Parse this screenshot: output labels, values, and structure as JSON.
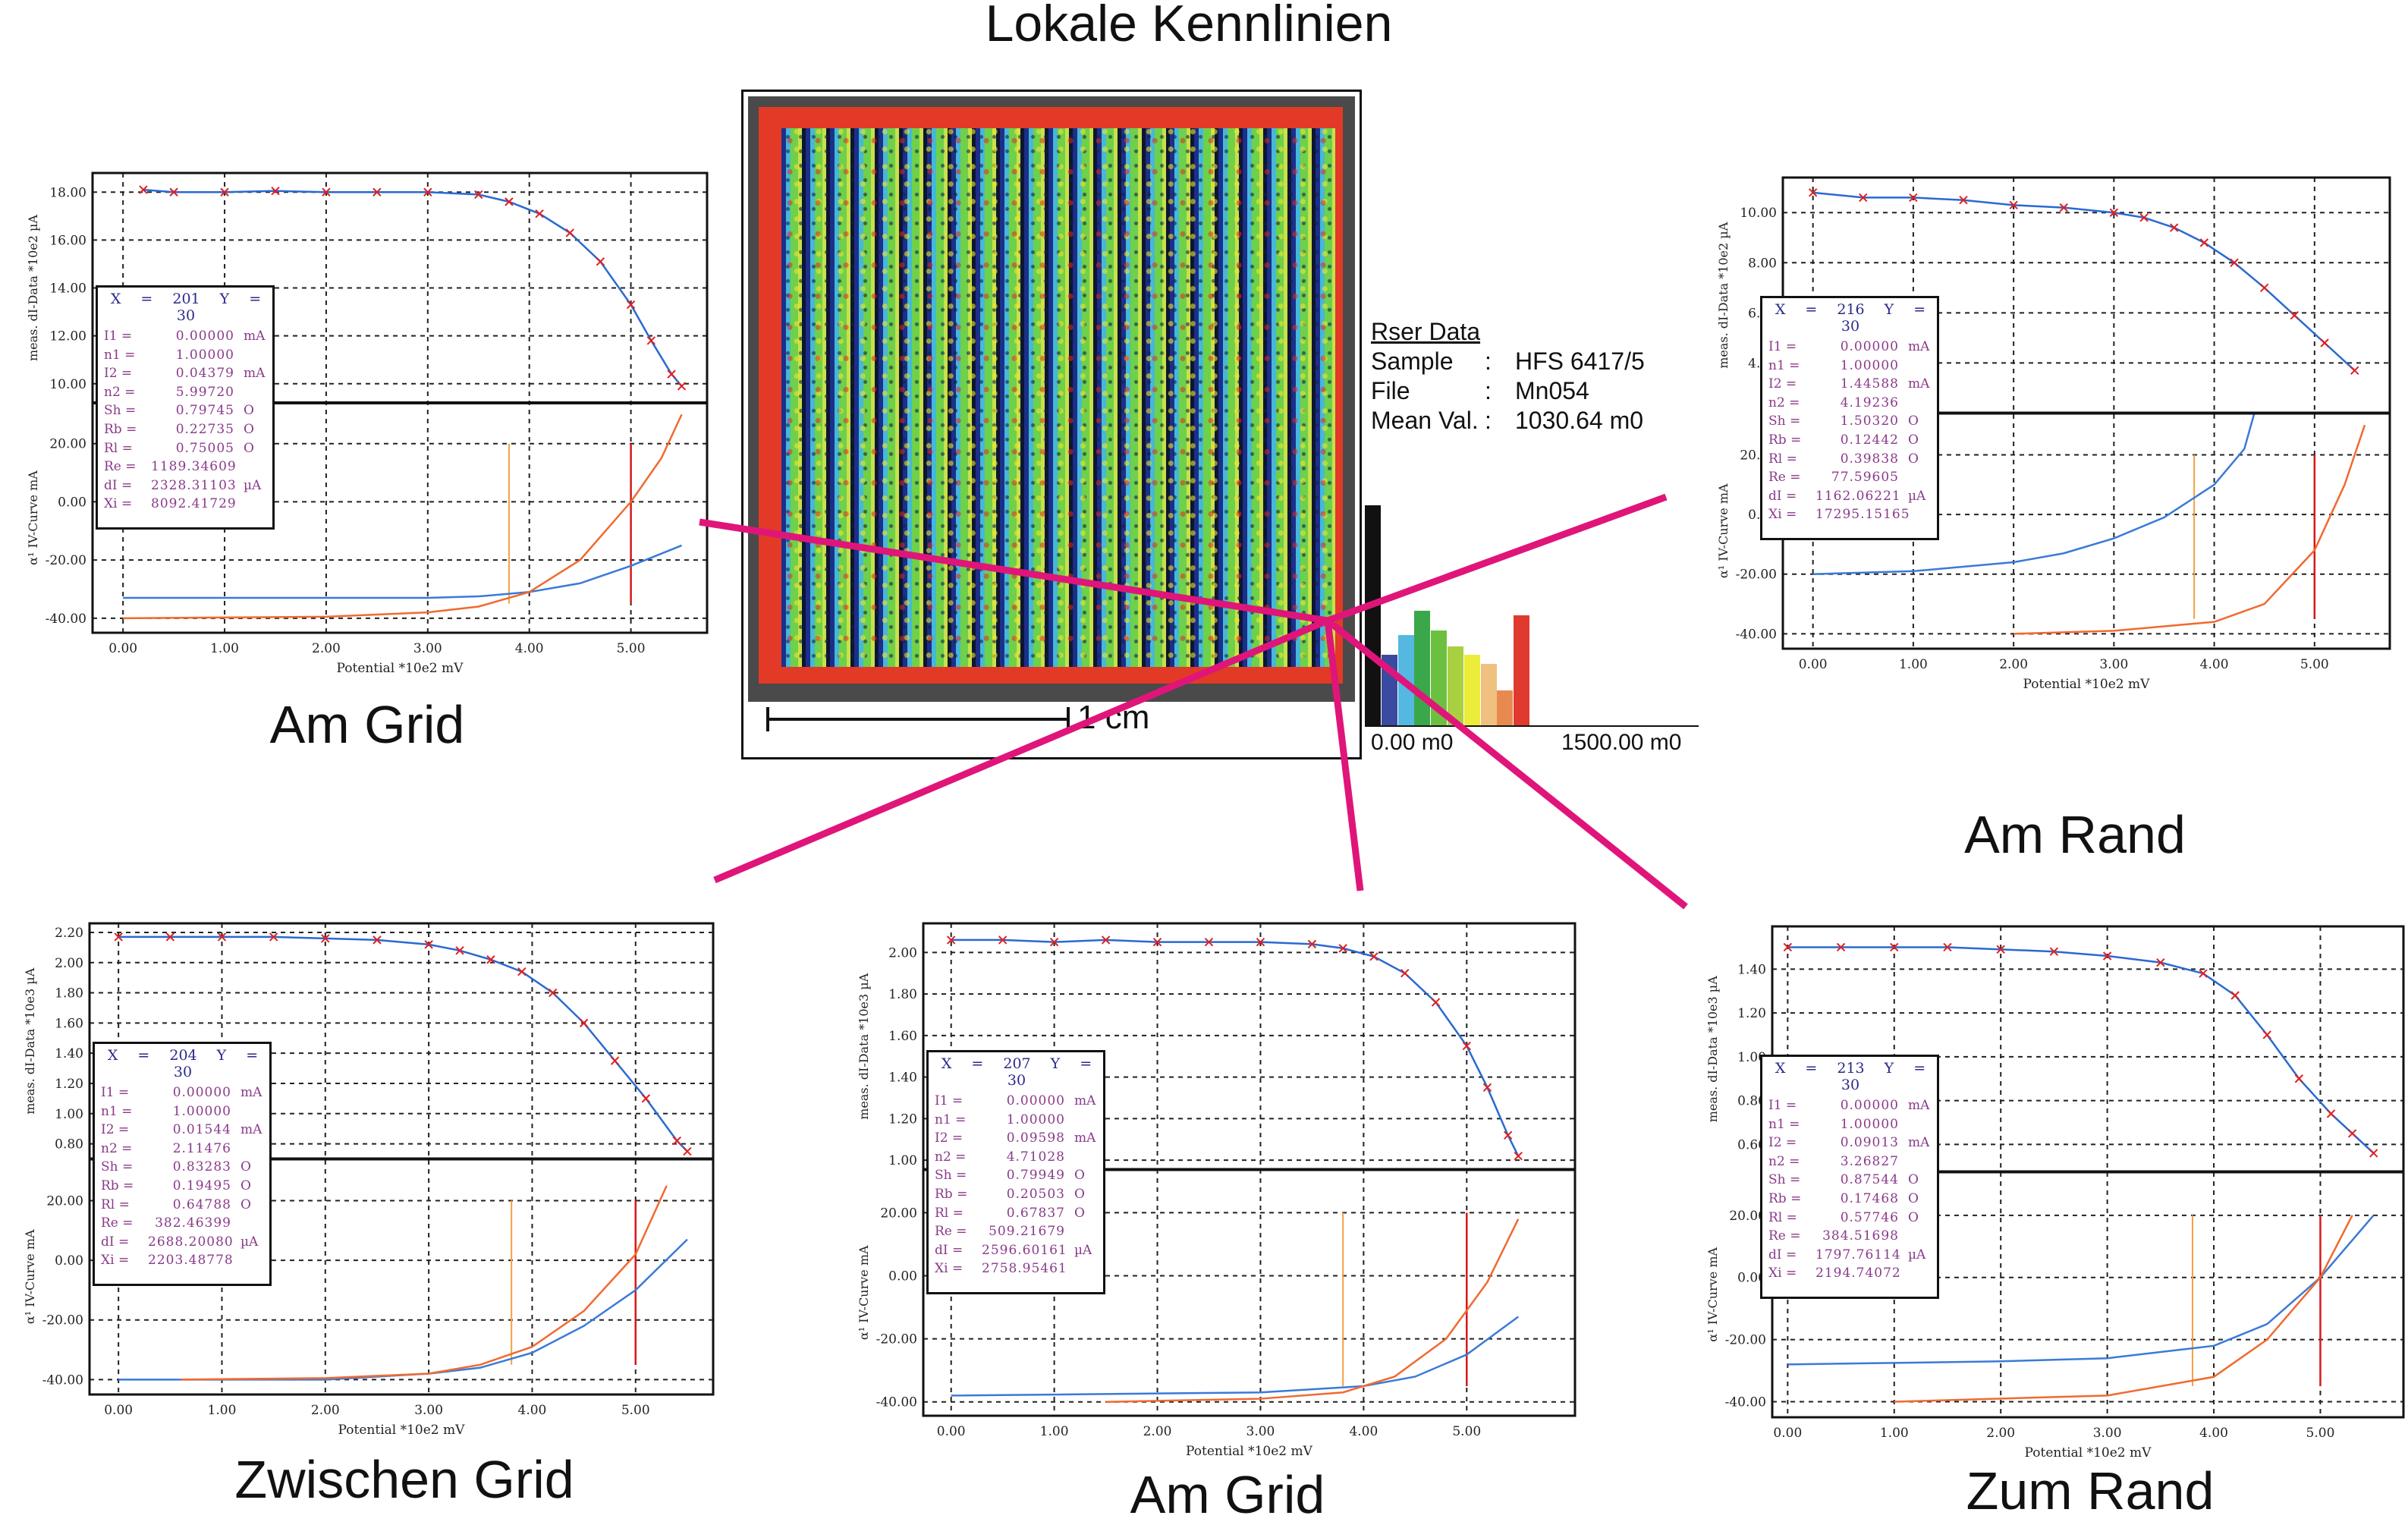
{
  "title": "Lokale Kennlinien",
  "map": {
    "scale_label": "1 cm",
    "info": {
      "heading": "Rser Data",
      "rows": [
        {
          "key": "Sample",
          "sep": ":",
          "value": "HFS 6417/5"
        },
        {
          "key": "File",
          "sep": ":",
          "value": "Mn054"
        },
        {
          "key": "Mean Val.",
          "sep": ":",
          "value": "1030.64  m0"
        }
      ]
    },
    "histogram": {
      "min_label": "0.00 m0",
      "max_label": "1500.00 m0",
      "relative_heights": [
        100,
        32,
        41,
        52,
        43,
        36,
        32,
        28,
        16,
        50
      ],
      "colors": [
        "#111111",
        "#3a4aa0",
        "#55b8e0",
        "#3aa84a",
        "#6cc040",
        "#a8d040",
        "#ecec3a",
        "#f0c080",
        "#e88a50",
        "#e03a30"
      ]
    },
    "pointer_color": "#e0157a"
  },
  "colors": {
    "measured": "#e02020",
    "fit": "#2a6ad0",
    "iv_blue": "#3a7ad8",
    "iv_orange": "#f06a30",
    "vline_orange": "#f5a040",
    "vline_red": "#d81818",
    "infobox_text": "#8a3a8a",
    "infobox_head": "#2a2a8a"
  },
  "chart_data": [
    {
      "type": "line",
      "caption": "Am Grid",
      "xlabel": "Potential *10e2 mV",
      "xlim": [
        -0.3,
        5.75
      ],
      "xticks": [
        0,
        1,
        2,
        3,
        4,
        5
      ],
      "top": {
        "ylabel": "meas. dI-Data *10e2 µA",
        "ylim": [
          9.2,
          18.8
        ],
        "yticks": [
          10,
          12,
          14,
          16,
          18
        ],
        "points": [
          [
            0.2,
            18.1
          ],
          [
            0.5,
            18.0
          ],
          [
            1,
            18.0
          ],
          [
            1.5,
            18.05
          ],
          [
            2,
            18.0
          ],
          [
            2.5,
            18.0
          ],
          [
            3,
            18.0
          ],
          [
            3.5,
            17.9
          ],
          [
            3.8,
            17.6
          ],
          [
            4.1,
            17.1
          ],
          [
            4.4,
            16.3
          ],
          [
            4.7,
            15.1
          ],
          [
            5.0,
            13.3
          ],
          [
            5.2,
            11.8
          ],
          [
            5.4,
            10.4
          ],
          [
            5.5,
            9.9
          ]
        ]
      },
      "bottom": {
        "ylabel": "α¹ IV-Curve mA",
        "ylim": [
          -45,
          34
        ],
        "yticks": [
          -40,
          -20,
          0,
          20
        ],
        "blue": [
          [
            0,
            -33
          ],
          [
            3,
            -33
          ],
          [
            3.5,
            -32.5
          ],
          [
            4,
            -31
          ],
          [
            4.5,
            -28
          ],
          [
            5,
            -22
          ],
          [
            5.5,
            -15
          ]
        ],
        "orange": [
          [
            0,
            -40
          ],
          [
            2,
            -39.5
          ],
          [
            3,
            -38
          ],
          [
            3.5,
            -36
          ],
          [
            4,
            -31
          ],
          [
            4.5,
            -20
          ],
          [
            5,
            0
          ],
          [
            5.3,
            15
          ],
          [
            5.5,
            30
          ]
        ],
        "vlines": {
          "orange": 3.8,
          "red": 5.0
        }
      },
      "info": {
        "head": "X = 201   Y = 30",
        "rows": [
          [
            "I1 =",
            "0.00000",
            "mA"
          ],
          [
            "n1 =",
            "1.00000",
            ""
          ],
          [
            "I2 =",
            "0.04379",
            "mA"
          ],
          [
            "n2 =",
            "5.99720",
            ""
          ],
          [
            "Sh =",
            "0.79745",
            "O"
          ],
          [
            "Rb =",
            "0.22735",
            "O"
          ],
          [
            "Rl =",
            "0.75005",
            "O"
          ],
          [
            "Re =",
            "1189.34609",
            ""
          ],
          [
            "dI =",
            "2328.31103",
            "µA"
          ],
          [
            "Xi =",
            "8092.41729",
            ""
          ]
        ]
      }
    },
    {
      "type": "line",
      "caption": "Am Rand",
      "xlabel": "Potential *10e2 mV",
      "xlim": [
        -0.3,
        5.75
      ],
      "xticks": [
        0,
        1,
        2,
        3,
        4,
        5
      ],
      "top": {
        "ylabel": "meas. dI-Data *10e2 µA",
        "ylim": [
          2,
          11.4
        ],
        "yticks": [
          4,
          6,
          8,
          10
        ],
        "points": [
          [
            0,
            10.8
          ],
          [
            0.5,
            10.6
          ],
          [
            1,
            10.6
          ],
          [
            1.5,
            10.5
          ],
          [
            2,
            10.3
          ],
          [
            2.5,
            10.2
          ],
          [
            3,
            10.0
          ],
          [
            3.3,
            9.8
          ],
          [
            3.6,
            9.4
          ],
          [
            3.9,
            8.8
          ],
          [
            4.2,
            8.0
          ],
          [
            4.5,
            7.0
          ],
          [
            4.8,
            5.9
          ],
          [
            5.1,
            4.8
          ],
          [
            5.4,
            3.7
          ]
        ]
      },
      "bottom": {
        "ylabel": "α¹ IV-Curve mA",
        "ylim": [
          -45,
          34
        ],
        "yticks": [
          -40,
          -20,
          0,
          20
        ],
        "blue": [
          [
            0,
            -20
          ],
          [
            1,
            -19
          ],
          [
            2,
            -16
          ],
          [
            2.5,
            -13
          ],
          [
            3,
            -8
          ],
          [
            3.5,
            -1
          ],
          [
            4,
            10
          ],
          [
            4.3,
            22
          ],
          [
            4.4,
            34
          ]
        ],
        "orange": [
          [
            2,
            -40
          ],
          [
            3,
            -39
          ],
          [
            4,
            -36
          ],
          [
            4.5,
            -30
          ],
          [
            5,
            -12
          ],
          [
            5.3,
            10
          ],
          [
            5.5,
            30
          ]
        ],
        "vlines": {
          "orange": 3.8,
          "red": 5.0
        }
      },
      "info": {
        "head": "X = 216   Y = 30",
        "rows": [
          [
            "I1 =",
            "0.00000",
            "mA"
          ],
          [
            "n1 =",
            "1.00000",
            ""
          ],
          [
            "I2 =",
            "1.44588",
            "mA"
          ],
          [
            "n2 =",
            "4.19236",
            ""
          ],
          [
            "Sh =",
            "1.50320",
            "O"
          ],
          [
            "Rb =",
            "0.12442",
            "O"
          ],
          [
            "Rl =",
            "0.39838",
            "O"
          ],
          [
            "Re =",
            "77.59605",
            ""
          ],
          [
            "dI =",
            "1162.06221",
            "µA"
          ],
          [
            "Xi =",
            "17295.15165",
            ""
          ]
        ]
      }
    },
    {
      "type": "line",
      "caption": "Zwischen Grid",
      "xlabel": "Potential *10e2 mV",
      "xlim": [
        -0.28,
        5.75
      ],
      "xticks": [
        0,
        1,
        2,
        3,
        4,
        5
      ],
      "top": {
        "ylabel": "meas. dI-Data *10e3 µA",
        "ylim": [
          0.7,
          2.26
        ],
        "yticks": [
          0.8,
          1.0,
          1.2,
          1.4,
          1.6,
          1.8,
          2.0,
          2.2
        ],
        "points": [
          [
            0,
            2.17
          ],
          [
            0.5,
            2.17
          ],
          [
            1,
            2.17
          ],
          [
            1.5,
            2.17
          ],
          [
            2,
            2.16
          ],
          [
            2.5,
            2.15
          ],
          [
            3,
            2.12
          ],
          [
            3.3,
            2.08
          ],
          [
            3.6,
            2.02
          ],
          [
            3.9,
            1.94
          ],
          [
            4.2,
            1.8
          ],
          [
            4.5,
            1.6
          ],
          [
            4.8,
            1.35
          ],
          [
            5.1,
            1.1
          ],
          [
            5.4,
            0.82
          ],
          [
            5.5,
            0.75
          ]
        ]
      },
      "bottom": {
        "ylabel": "α¹ IV-Curve mA",
        "ylim": [
          -45,
          34
        ],
        "yticks": [
          -40,
          -20,
          0,
          20
        ],
        "blue": [
          [
            0,
            -40
          ],
          [
            2,
            -40
          ],
          [
            3,
            -38
          ],
          [
            3.5,
            -36
          ],
          [
            4,
            -31
          ],
          [
            4.5,
            -22
          ],
          [
            5,
            -10
          ],
          [
            5.5,
            7
          ]
        ],
        "orange": [
          [
            0.6,
            -40
          ],
          [
            2,
            -39.5
          ],
          [
            3,
            -38
          ],
          [
            3.5,
            -35
          ],
          [
            4,
            -29
          ],
          [
            4.5,
            -17
          ],
          [
            5,
            2
          ],
          [
            5.3,
            25
          ]
        ],
        "vlines": {
          "orange": 3.8,
          "red": 5.0
        }
      },
      "info": {
        "head": "X = 204   Y = 30",
        "rows": [
          [
            "I1 =",
            "0.00000",
            "mA"
          ],
          [
            "n1 =",
            "1.00000",
            ""
          ],
          [
            "I2 =",
            "0.01544",
            "mA"
          ],
          [
            "n2 =",
            "2.11476",
            ""
          ],
          [
            "Sh =",
            "0.83283",
            "O"
          ],
          [
            "Rb =",
            "0.19495",
            "O"
          ],
          [
            "Rl =",
            "0.64788",
            "O"
          ],
          [
            "Re =",
            "382.46399",
            ""
          ],
          [
            "dI =",
            "2688.20080",
            "µA"
          ],
          [
            "Xi =",
            "2203.48778",
            ""
          ]
        ]
      }
    },
    {
      "type": "line",
      "caption": "Am Grid",
      "xlabel": "Potential *10e2 mV",
      "xlim": [
        -0.27,
        6.05
      ],
      "xticks": [
        0,
        1,
        2,
        3,
        4,
        5
      ],
      "top": {
        "ylabel": "meas. dI-Data *10e3 µA",
        "ylim": [
          0.955,
          2.14
        ],
        "yticks": [
          1.0,
          1.2,
          1.4,
          1.6,
          1.8,
          2.0
        ],
        "points": [
          [
            0,
            2.06
          ],
          [
            0.5,
            2.06
          ],
          [
            1,
            2.05
          ],
          [
            1.5,
            2.06
          ],
          [
            2,
            2.05
          ],
          [
            2.5,
            2.05
          ],
          [
            3,
            2.05
          ],
          [
            3.5,
            2.04
          ],
          [
            3.8,
            2.02
          ],
          [
            4.1,
            1.98
          ],
          [
            4.4,
            1.9
          ],
          [
            4.7,
            1.76
          ],
          [
            5.0,
            1.55
          ],
          [
            5.2,
            1.35
          ],
          [
            5.4,
            1.12
          ],
          [
            5.5,
            1.02
          ]
        ]
      },
      "bottom": {
        "ylabel": "α¹ IV-Curve mA",
        "ylim": [
          -44.4,
          33.7
        ],
        "yticks": [
          -40,
          -20,
          0,
          20
        ],
        "blue": [
          [
            0,
            -38
          ],
          [
            3,
            -37
          ],
          [
            4,
            -35
          ],
          [
            4.5,
            -32
          ],
          [
            5,
            -25
          ],
          [
            5.5,
            -13
          ]
        ],
        "orange": [
          [
            1.5,
            -40
          ],
          [
            3,
            -39
          ],
          [
            3.8,
            -37
          ],
          [
            4.3,
            -32
          ],
          [
            4.8,
            -20
          ],
          [
            5.2,
            -2
          ],
          [
            5.5,
            18
          ]
        ],
        "vlines": {
          "orange": 3.8,
          "red": 5.0
        }
      },
      "info": {
        "head": "X = 207   Y = 30",
        "rows": [
          [
            "I1 =",
            "0.00000",
            "mA"
          ],
          [
            "n1 =",
            "1.00000",
            ""
          ],
          [
            "I2 =",
            "0.09598",
            "mA"
          ],
          [
            "n2 =",
            "4.71028",
            ""
          ],
          [
            "Sh =",
            "0.79949",
            "O"
          ],
          [
            "Rb =",
            "0.20503",
            "O"
          ],
          [
            "Rl =",
            "0.67837",
            "O"
          ],
          [
            "Re =",
            "509.21679",
            ""
          ],
          [
            "dI =",
            "2596.60161",
            "µA"
          ],
          [
            "Xi =",
            "2758.95461",
            ""
          ]
        ]
      }
    },
    {
      "type": "line",
      "caption": "Zum Rand",
      "xlabel": "Potential *10e2 mV",
      "xlim": [
        -0.145,
        5.78
      ],
      "xticks": [
        0,
        1,
        2,
        3,
        4,
        5
      ],
      "top": {
        "ylabel": "meas. dI-Data *10e3 µA",
        "ylim": [
          0.475,
          1.595
        ],
        "yticks": [
          0.6,
          0.8,
          1.0,
          1.2,
          1.4
        ],
        "points": [
          [
            0,
            1.5
          ],
          [
            0.5,
            1.5
          ],
          [
            1,
            1.5
          ],
          [
            1.5,
            1.5
          ],
          [
            2,
            1.49
          ],
          [
            2.5,
            1.48
          ],
          [
            3,
            1.46
          ],
          [
            3.5,
            1.43
          ],
          [
            3.9,
            1.38
          ],
          [
            4.2,
            1.28
          ],
          [
            4.5,
            1.1
          ],
          [
            4.8,
            0.9
          ],
          [
            5.1,
            0.74
          ],
          [
            5.3,
            0.65
          ],
          [
            5.5,
            0.56
          ]
        ]
      },
      "bottom": {
        "ylabel": "α¹ IV-Curve mA",
        "ylim": [
          -45,
          34
        ],
        "yticks": [
          -40,
          -20,
          0,
          20
        ],
        "blue": [
          [
            0,
            -28
          ],
          [
            2,
            -27
          ],
          [
            3,
            -26
          ],
          [
            4,
            -22
          ],
          [
            4.5,
            -15
          ],
          [
            5,
            0
          ],
          [
            5.5,
            20
          ]
        ],
        "orange": [
          [
            1,
            -40
          ],
          [
            3,
            -38
          ],
          [
            4,
            -32
          ],
          [
            4.5,
            -20
          ],
          [
            5,
            0
          ],
          [
            5.3,
            20
          ]
        ],
        "vlines": {
          "orange": 3.8,
          "red": 5.0
        }
      },
      "info": {
        "head": "X = 213   Y = 30",
        "rows": [
          [
            "I1 =",
            "0.00000",
            "mA"
          ],
          [
            "n1 =",
            "1.00000",
            ""
          ],
          [
            "I2 =",
            "0.09013",
            "mA"
          ],
          [
            "n2 =",
            "3.26827",
            ""
          ],
          [
            "Sh =",
            "0.87544",
            "O"
          ],
          [
            "Rb =",
            "0.17468",
            "O"
          ],
          [
            "Rl =",
            "0.57746",
            "O"
          ],
          [
            "Re =",
            "384.51698",
            ""
          ],
          [
            "dI =",
            "1797.76114",
            "µA"
          ],
          [
            "Xi =",
            "2194.74072",
            ""
          ]
        ]
      }
    }
  ]
}
